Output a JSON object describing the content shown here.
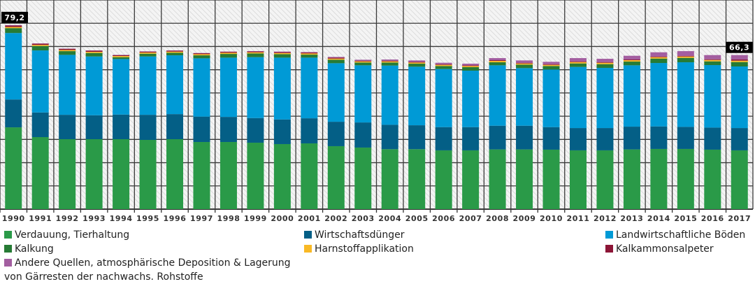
{
  "chart_data": {
    "type": "bar",
    "stacked": true,
    "title": "",
    "xlabel": "",
    "ylabel": "",
    "ylim": [
      0,
      90
    ],
    "grid": true,
    "y_gridline_step": 10,
    "y_tick_labels_shown": false,
    "legend_placement": "bottom",
    "categories": [
      "1990",
      "1991",
      "1992",
      "1993",
      "1994",
      "1995",
      "1996",
      "1997",
      "1998",
      "1999",
      "2000",
      "2001",
      "2002",
      "2003",
      "2004",
      "2005",
      "2006",
      "2007",
      "2008",
      "2009",
      "2010",
      "2011",
      "2012",
      "2013",
      "2014",
      "2015",
      "2016",
      "2017"
    ],
    "series": [
      {
        "name": "Verdauung, Tierhaltung",
        "color": "#2a9a48",
        "values": [
          35.2,
          31.0,
          30.1,
          30.1,
          30.1,
          29.8,
          30.1,
          28.9,
          28.9,
          28.6,
          28.0,
          28.3,
          27.1,
          26.5,
          25.8,
          25.8,
          25.3,
          25.3,
          25.7,
          25.7,
          25.6,
          25.3,
          25.3,
          25.7,
          25.9,
          25.9,
          25.6,
          25.3
        ]
      },
      {
        "name": "Wirtschaftsdünger",
        "color": "#045f86",
        "values": [
          12.0,
          10.6,
          10.5,
          10.3,
          10.6,
          10.8,
          10.8,
          10.9,
          10.8,
          10.6,
          10.6,
          10.8,
          10.5,
          10.8,
          10.5,
          10.3,
          10.0,
          10.0,
          10.2,
          10.2,
          9.7,
          9.6,
          9.6,
          9.8,
          9.7,
          9.5,
          9.5,
          9.6
        ]
      },
      {
        "name": "Landwirtschaftliche Böden",
        "color": "#009ad6",
        "values": [
          28.6,
          26.7,
          25.8,
          25.3,
          23.9,
          25.1,
          25.3,
          25.1,
          25.5,
          26.2,
          26.6,
          26.1,
          25.2,
          24.6,
          25.5,
          25.2,
          25.0,
          24.3,
          26.0,
          24.8,
          24.8,
          26.3,
          25.9,
          26.4,
          27.3,
          27.8,
          26.9,
          26.5
        ]
      },
      {
        "name": "Kalkung",
        "color": "#267b35",
        "values": [
          2.1,
          1.9,
          1.6,
          1.5,
          0.8,
          1.2,
          1.1,
          1.3,
          1.6,
          1.6,
          1.5,
          1.3,
          1.5,
          1.2,
          1.3,
          1.3,
          1.3,
          1.5,
          1.3,
          1.5,
          1.5,
          1.5,
          1.6,
          1.6,
          1.9,
          1.9,
          1.6,
          1.9
        ]
      },
      {
        "name": "Harnstoffapplikation",
        "color": "#f9b925",
        "values": [
          0.5,
          0.5,
          0.5,
          0.5,
          0.5,
          0.5,
          0.5,
          0.5,
          0.5,
          0.5,
          0.5,
          0.5,
          0.5,
          0.5,
          0.5,
          0.5,
          0.5,
          0.5,
          0.6,
          0.5,
          0.5,
          0.6,
          0.6,
          0.6,
          0.6,
          0.6,
          0.6,
          0.6
        ]
      },
      {
        "name": "Kalkammonsalpeter",
        "color": "#8c1536",
        "values": [
          0.6,
          0.5,
          0.5,
          0.5,
          0.4,
          0.4,
          0.4,
          0.4,
          0.4,
          0.4,
          0.4,
          0.4,
          0.4,
          0.3,
          0.3,
          0.3,
          0.3,
          0.3,
          0.3,
          0.3,
          0.3,
          0.3,
          0.3,
          0.3,
          0.3,
          0.3,
          0.3,
          0.5
        ]
      },
      {
        "name": "Andere Quellen, atmosphärische Deposition & Lagerung von Gärresten der nachwachs. Rohstoffe",
        "color": "#a35ea0",
        "values": [
          0.2,
          0.1,
          0.1,
          0.1,
          0.1,
          0.1,
          0.1,
          0.1,
          0.1,
          0.1,
          0.2,
          0.2,
          0.3,
          0.4,
          0.5,
          0.6,
          0.6,
          0.7,
          0.9,
          1.0,
          1.0,
          1.4,
          1.4,
          1.6,
          1.8,
          2.0,
          1.8,
          1.9
        ]
      }
    ],
    "annotations": [
      {
        "category": "1990",
        "text": "79,2"
      },
      {
        "category": "2017",
        "text": "66,3"
      }
    ]
  },
  "legend": {
    "items": [
      {
        "label": "Verdauung, Tierhaltung",
        "color": "#2a9a48"
      },
      {
        "label": "Wirtschaftsdünger",
        "color": "#045f86"
      },
      {
        "label": "Landwirtschaftliche Böden",
        "color": "#009ad6"
      },
      {
        "label": "Kalkung",
        "color": "#267b35"
      },
      {
        "label": "Harnstoffapplikation",
        "color": "#f9b925"
      },
      {
        "label": "Kalkammonsalpeter",
        "color": "#8c1536"
      },
      {
        "label": "Andere Quellen, atmosphärische Deposition & Lagerung",
        "label_line2": "von Gärresten der nachwachs. Rohstoffe",
        "color": "#a35ea0"
      }
    ]
  }
}
